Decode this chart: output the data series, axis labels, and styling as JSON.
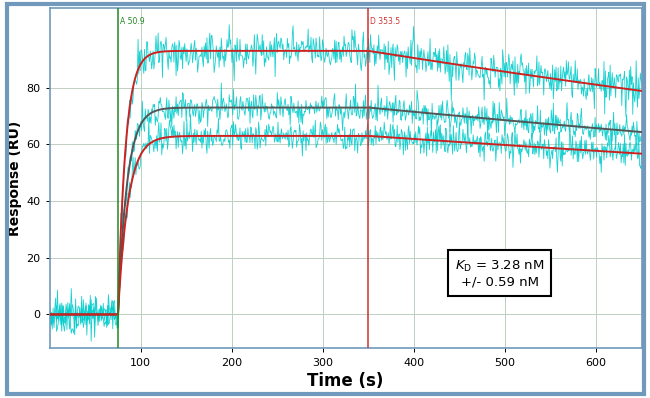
{
  "xlabel": "Time (s)",
  "ylabel": "Response (RU)",
  "xlim": [
    0,
    650
  ],
  "ylim": [
    -12,
    108
  ],
  "yticks": [
    0,
    20,
    40,
    60,
    80
  ],
  "xticks": [
    100,
    200,
    300,
    400,
    500,
    600
  ],
  "background_color": "#ffffff",
  "plot_bg_color": "#ffffff",
  "border_color": "#7099bb",
  "grid_color": "#c0d0c0",
  "association_start": 75,
  "dissociation_start": 350,
  "x_end": 650,
  "curves": [
    {
      "Rmax": 93,
      "ka": 0.12,
      "kd": 0.00055,
      "color": "#cc2222",
      "noise": 3.5
    },
    {
      "Rmax": 73,
      "ka": 0.1,
      "kd": 0.00042,
      "color": "#555555",
      "noise": 2.8
    },
    {
      "Rmax": 63,
      "ka": 0.09,
      "kd": 0.00035,
      "color": "#cc2222",
      "noise": 2.8
    }
  ],
  "vline1_x": 75,
  "vline1_color": "#228822",
  "vline1_label": "A 50.9",
  "vline2_x": 350,
  "vline2_color": "#cc3333",
  "vline2_label": "D 353.5",
  "kd_text_line1": "$K_\\mathrm{D}$ = 3.28 nM",
  "kd_text_line2": "+/- 0.59 nM",
  "cyan_color": "#00cccc",
  "noise_pre": 3.0,
  "n_pre": 80,
  "n_assoc": 350,
  "n_dissoc": 400
}
